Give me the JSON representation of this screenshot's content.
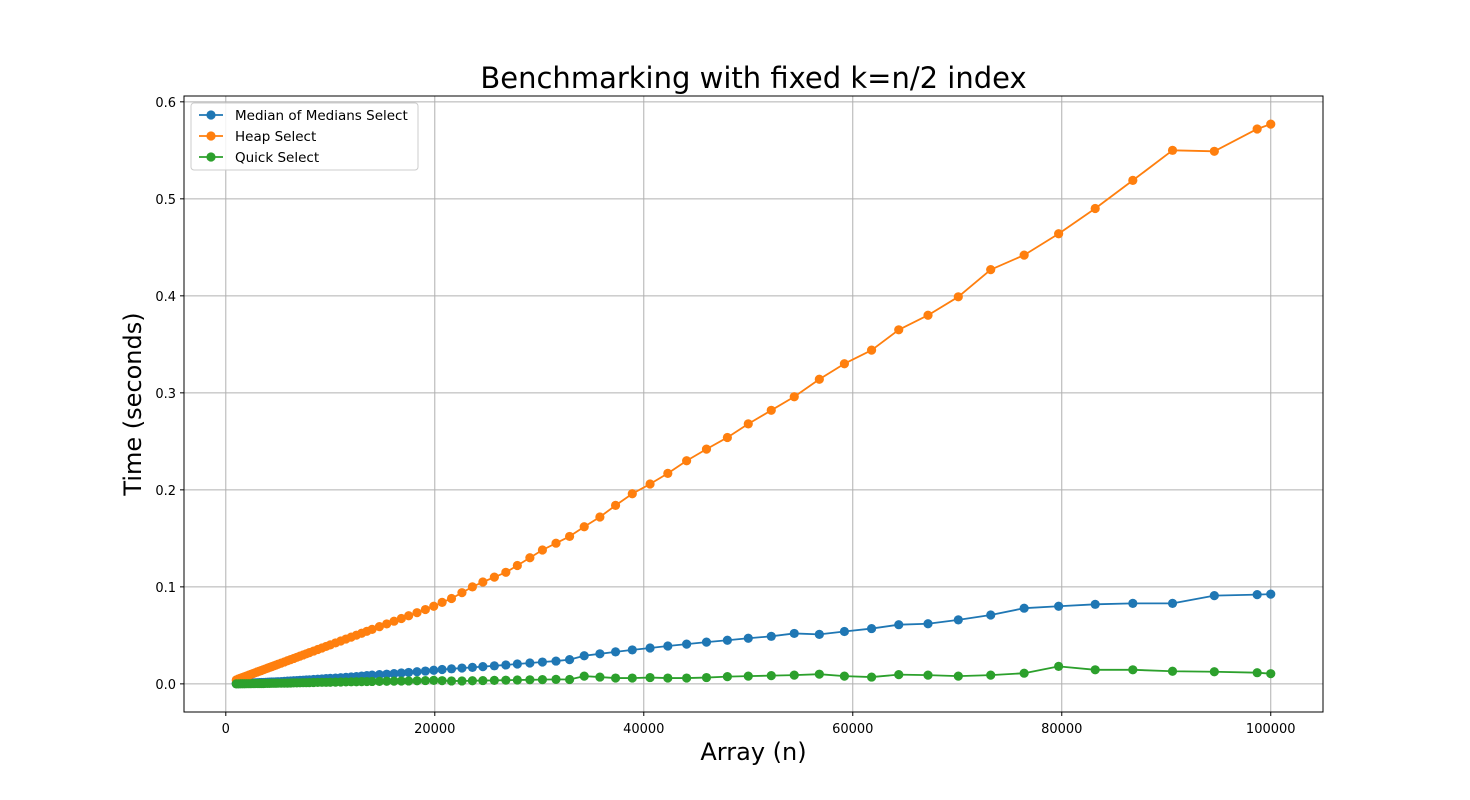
{
  "chart_data": {
    "type": "line",
    "title": "Benchmarking with fixed k=n/2 index",
    "xlabel": "Array (n)",
    "ylabel": "Time (seconds)",
    "xlim": [
      -4000,
      105000
    ],
    "ylim": [
      -0.029,
      0.606
    ],
    "xticks": [
      0,
      20000,
      40000,
      60000,
      80000,
      100000
    ],
    "yticks": [
      0.0,
      0.1,
      0.2,
      0.3,
      0.4,
      0.5,
      0.6
    ],
    "grid": true,
    "legend_position": "top-left",
    "x": [
      1000,
      1200,
      1400,
      1600,
      1800,
      2000,
      2200,
      2400,
      2600,
      2800,
      3000,
      3200,
      3400,
      3600,
      3800,
      4000,
      4200,
      4400,
      4600,
      4800,
      5000,
      5300,
      5600,
      5900,
      6200,
      6500,
      6800,
      7100,
      7400,
      7700,
      8000,
      8400,
      8800,
      9200,
      9600,
      10000,
      10500,
      11000,
      11500,
      12000,
      12500,
      13000,
      13500,
      14000,
      14700,
      15400,
      16100,
      16800,
      17500,
      18300,
      19100,
      19900,
      20700,
      21600,
      22600,
      23600,
      24600,
      25700,
      26800,
      27900,
      29100,
      30300,
      31600,
      32900,
      34300,
      35800,
      37300,
      38900,
      40600,
      42300,
      44100,
      46000,
      48000,
      50000,
      52200,
      54400,
      56800,
      59200,
      61800,
      64400,
      67200,
      70100,
      73200,
      76400,
      79700,
      83200,
      86800,
      90600,
      94600,
      98700,
      100000
    ],
    "series": [
      {
        "name": "Median of Medians Select",
        "color": "#1f77b4",
        "values": [
          0.0002,
          0.0003,
          0.0004,
          0.0005,
          0.0006,
          0.0007,
          0.0008,
          0.0009,
          0.001,
          0.0011,
          0.0012,
          0.0013,
          0.0014,
          0.0015,
          0.0016,
          0.0017,
          0.0018,
          0.0019,
          0.002,
          0.0021,
          0.0022,
          0.0024,
          0.0026,
          0.0028,
          0.003,
          0.0032,
          0.0034,
          0.0036,
          0.0038,
          0.004,
          0.0042,
          0.0045,
          0.0048,
          0.0051,
          0.0054,
          0.0057,
          0.006,
          0.0063,
          0.0067,
          0.0071,
          0.0075,
          0.008,
          0.0085,
          0.009,
          0.0095,
          0.01,
          0.0106,
          0.0112,
          0.0118,
          0.0125,
          0.0132,
          0.014,
          0.0148,
          0.0155,
          0.0163,
          0.017,
          0.0178,
          0.0186,
          0.0195,
          0.0205,
          0.0215,
          0.0225,
          0.0235,
          0.025,
          0.029,
          0.031,
          0.033,
          0.035,
          0.037,
          0.039,
          0.041,
          0.043,
          0.045,
          0.047,
          0.049,
          0.052,
          0.051,
          0.054,
          0.057,
          0.061,
          0.062,
          0.066,
          0.071,
          0.078,
          0.08,
          0.082,
          0.083,
          0.083,
          0.091,
          0.092,
          0.0925
        ]
      },
      {
        "name": "Heap Select",
        "color": "#ff7f0e",
        "values": [
          0.004,
          0.005,
          0.0058,
          0.0066,
          0.0074,
          0.0082,
          0.009,
          0.0098,
          0.0106,
          0.0114,
          0.0122,
          0.013,
          0.0138,
          0.0146,
          0.0154,
          0.0162,
          0.017,
          0.0178,
          0.0186,
          0.0194,
          0.0202,
          0.0214,
          0.0226,
          0.0238,
          0.025,
          0.0262,
          0.0274,
          0.0286,
          0.0298,
          0.031,
          0.0322,
          0.0338,
          0.0354,
          0.037,
          0.0386,
          0.0402,
          0.0422,
          0.0442,
          0.0462,
          0.0482,
          0.0502,
          0.0522,
          0.0542,
          0.0562,
          0.059,
          0.0618,
          0.0646,
          0.0674,
          0.0702,
          0.0734,
          0.0766,
          0.08,
          0.084,
          0.088,
          0.094,
          0.1,
          0.105,
          0.11,
          0.115,
          0.122,
          0.13,
          0.138,
          0.145,
          0.152,
          0.162,
          0.172,
          0.184,
          0.196,
          0.206,
          0.217,
          0.23,
          0.242,
          0.254,
          0.268,
          0.282,
          0.296,
          0.314,
          0.33,
          0.344,
          0.365,
          0.38,
          0.399,
          0.427,
          0.442,
          0.464,
          0.49,
          0.519,
          0.55,
          0.549,
          0.572,
          0.577
        ]
      },
      {
        "name": "Quick Select",
        "color": "#2ca02c",
        "values": [
          0.0,
          0.0,
          0.0001,
          0.0001,
          0.0001,
          0.0002,
          0.0002,
          0.0002,
          0.0003,
          0.0003,
          0.0003,
          0.0004,
          0.0004,
          0.0004,
          0.0005,
          0.0005,
          0.0005,
          0.0006,
          0.0006,
          0.0006,
          0.0007,
          0.0007,
          0.0008,
          0.0008,
          0.0009,
          0.001,
          0.001,
          0.0011,
          0.0012,
          0.0012,
          0.0013,
          0.0014,
          0.0015,
          0.0016,
          0.0016,
          0.0017,
          0.0018,
          0.0019,
          0.002,
          0.0021,
          0.0022,
          0.0023,
          0.0024,
          0.0025,
          0.0026,
          0.0027,
          0.0028,
          0.0029,
          0.003,
          0.0032,
          0.0034,
          0.0036,
          0.0033,
          0.003,
          0.003,
          0.0032,
          0.0034,
          0.0036,
          0.0038,
          0.004,
          0.0042,
          0.0044,
          0.0046,
          0.0045,
          0.008,
          0.007,
          0.006,
          0.006,
          0.0065,
          0.006,
          0.006,
          0.0065,
          0.0075,
          0.008,
          0.0085,
          0.009,
          0.01,
          0.008,
          0.007,
          0.0095,
          0.009,
          0.008,
          0.009,
          0.011,
          0.018,
          0.0145,
          0.0145,
          0.013,
          0.0125,
          0.0115,
          0.0105
        ]
      }
    ]
  }
}
